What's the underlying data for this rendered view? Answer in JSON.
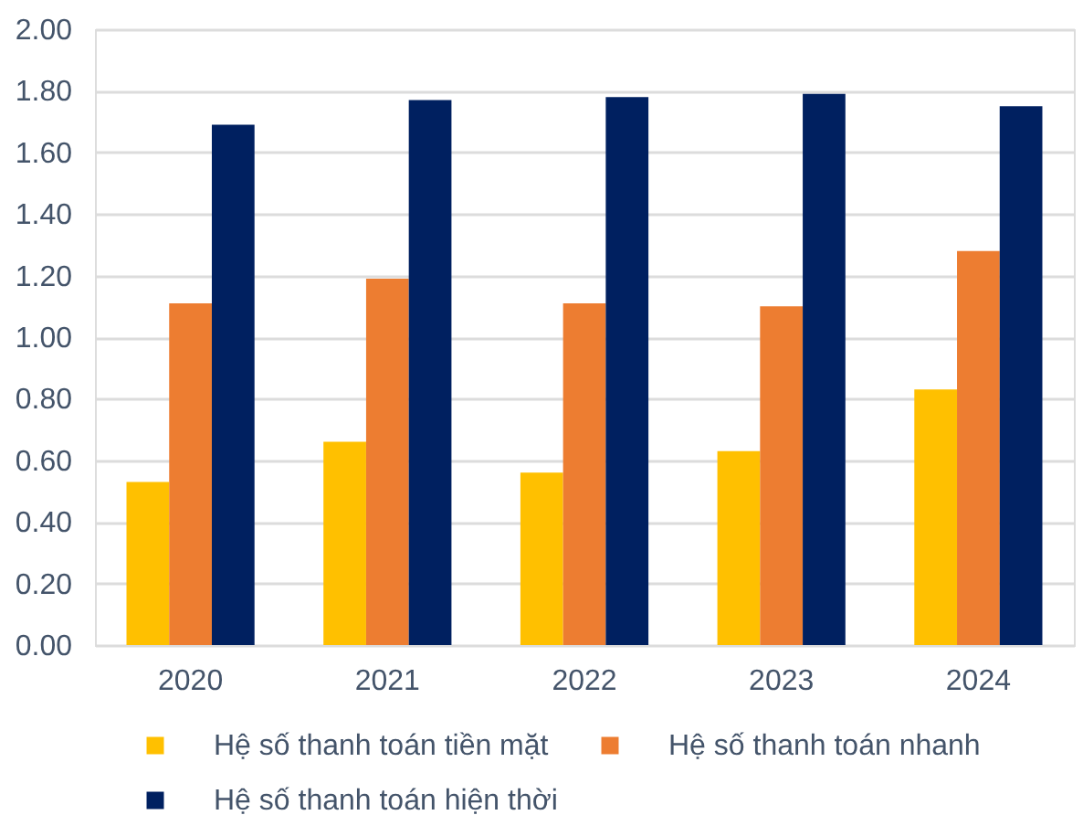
{
  "chart_data": {
    "type": "bar",
    "categories": [
      "2020",
      "2021",
      "2022",
      "2023",
      "2024"
    ],
    "series": [
      {
        "name": "Hệ số thanh toán tiền mặt",
        "color": "#ffc000",
        "values": [
          0.53,
          0.66,
          0.56,
          0.63,
          0.83
        ]
      },
      {
        "name": "Hệ số thanh toán nhanh",
        "color": "#ed7d31",
        "values": [
          1.11,
          1.19,
          1.11,
          1.1,
          1.28
        ]
      },
      {
        "name": "Hệ số thanh toán hiện thời",
        "color": "#002060",
        "values": [
          1.69,
          1.77,
          1.78,
          1.79,
          1.75
        ]
      }
    ],
    "ylim": [
      0,
      2
    ],
    "yticks": [
      {
        "value": 0,
        "label": "0.00"
      },
      {
        "value": 0.2,
        "label": "0.20"
      },
      {
        "value": 0.4,
        "label": "0.40"
      },
      {
        "value": 0.6,
        "label": "0.60"
      },
      {
        "value": 0.8,
        "label": "0.80"
      },
      {
        "value": 1,
        "label": "1.00"
      },
      {
        "value": 1.2,
        "label": "1.20"
      },
      {
        "value": 1.4,
        "label": "1.40"
      },
      {
        "value": 1.6,
        "label": "1.60"
      },
      {
        "value": 1.8,
        "label": "1.80"
      },
      {
        "value": 2,
        "label": "2.00"
      }
    ],
    "grid": "y",
    "legend": "bottom"
  }
}
